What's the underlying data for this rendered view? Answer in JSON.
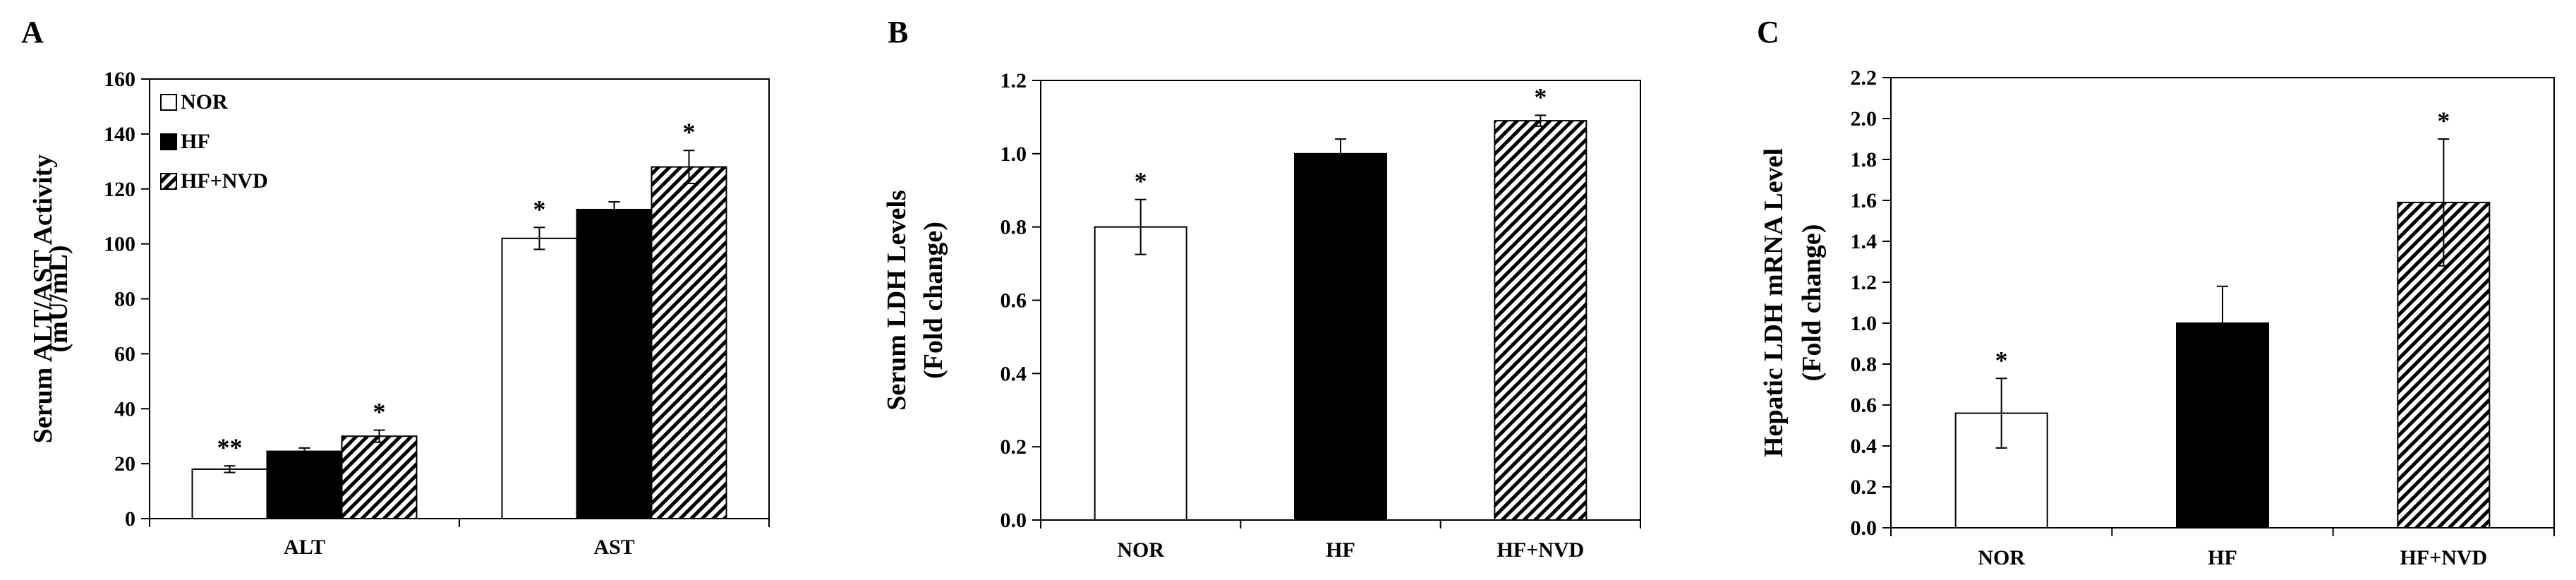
{
  "chart_data": [
    {
      "panel_label": "A",
      "type": "bar",
      "categories": [
        "ALT",
        "AST"
      ],
      "ylabel": [
        "Serum ALT/AST Activity",
        "(mU/mL)"
      ],
      "ylim": [
        0,
        160
      ],
      "yticks": [
        0,
        20,
        40,
        60,
        80,
        100,
        120,
        140,
        160
      ],
      "legend_position": "top-left",
      "series": [
        {
          "name": "NOR",
          "pattern": "white",
          "values": [
            18,
            102
          ],
          "errors": [
            1.2,
            4
          ],
          "annotations": [
            "**",
            "*"
          ]
        },
        {
          "name": "HF",
          "pattern": "black",
          "values": [
            24.5,
            112.5
          ],
          "errors": [
            1.2,
            2.8
          ],
          "annotations": [
            "",
            ""
          ]
        },
        {
          "name": "HF+NVD",
          "pattern": "hatch",
          "values": [
            30,
            128
          ],
          "errors": [
            2.2,
            6
          ],
          "annotations": [
            "*",
            "*"
          ]
        }
      ]
    },
    {
      "panel_label": "B",
      "type": "bar",
      "categories": [
        "NOR",
        "HF",
        "HF+NVD"
      ],
      "ylabel": [
        "Serum LDH Levels",
        "(Fold change)"
      ],
      "ylim": [
        0,
        1.2
      ],
      "yticks": [
        "0.0",
        "0.2",
        "0.4",
        "0.6",
        "0.8",
        "1.0",
        "1.2"
      ],
      "values": [
        0.8,
        1.0,
        1.09
      ],
      "errors": [
        0.075,
        0.04,
        0.015
      ],
      "patterns": [
        "white",
        "black",
        "hatch"
      ],
      "annotations": [
        "*",
        "",
        "*"
      ]
    },
    {
      "panel_label": "C",
      "type": "bar",
      "categories": [
        "NOR",
        "HF",
        "HF+NVD"
      ],
      "ylabel": [
        "Hepatic LDH mRNA Level",
        "(Fold change)"
      ],
      "ylim": [
        0,
        2.2
      ],
      "yticks": [
        "0.0",
        "0.2",
        "0.4",
        "0.6",
        "0.8",
        "1.0",
        "1.2",
        "1.4",
        "1.6",
        "1.8",
        "2.0",
        "2.2"
      ],
      "values": [
        0.56,
        1.0,
        1.59
      ],
      "errors": [
        0.17,
        0.18,
        0.31
      ],
      "patterns": [
        "white",
        "black",
        "hatch"
      ],
      "annotations": [
        "*",
        "",
        "*"
      ]
    }
  ]
}
